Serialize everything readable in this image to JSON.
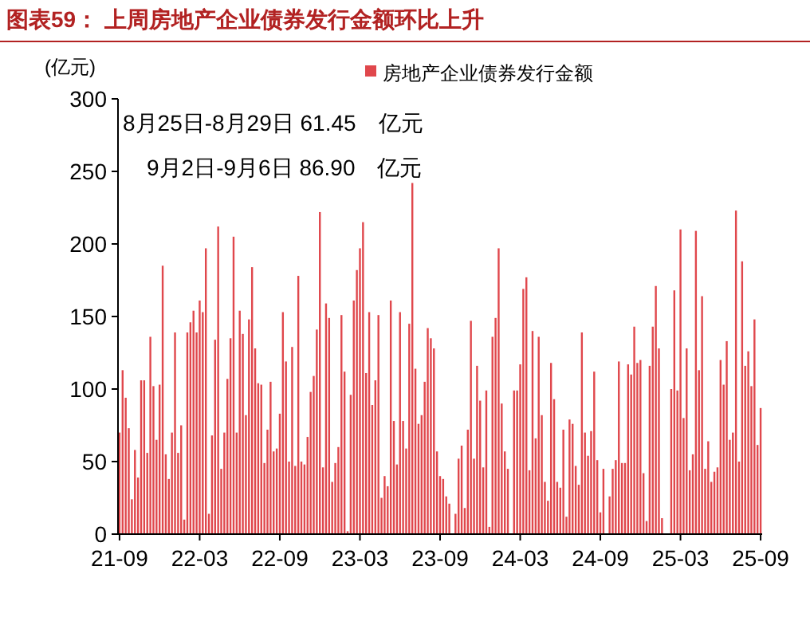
{
  "chart_data": {
    "type": "bar",
    "title": "图表59：  上周房地产企业债券发行金额环比上升",
    "ylabel": "(亿元)",
    "annotations": [
      "8月25日-8月29日 61.45　亿元",
      "9月2日-9月6日 86.90　亿元"
    ],
    "legend": "top",
    "ylim": [
      0,
      300
    ],
    "yticks": [
      0,
      50,
      100,
      150,
      200,
      250,
      300
    ],
    "categories": [
      "21-09",
      null,
      null,
      null,
      null,
      null,
      null,
      null,
      null,
      null,
      null,
      null,
      null,
      null,
      null,
      null,
      null,
      null,
      null,
      null,
      null,
      null,
      null,
      null,
      null,
      null,
      "22-03",
      null,
      null,
      null,
      null,
      null,
      null,
      null,
      null,
      null,
      null,
      null,
      null,
      null,
      null,
      null,
      null,
      null,
      null,
      null,
      null,
      null,
      null,
      null,
      null,
      null,
      "22-09",
      null,
      null,
      null,
      null,
      null,
      null,
      null,
      null,
      null,
      null,
      null,
      null,
      null,
      null,
      null,
      null,
      null,
      null,
      null,
      null,
      null,
      null,
      null,
      null,
      null,
      "23-03",
      null,
      null,
      null,
      null,
      null,
      null,
      null,
      null,
      null,
      null,
      null,
      null,
      null,
      null,
      null,
      null,
      null,
      null,
      null,
      null,
      null,
      null,
      null,
      null,
      null,
      "23-09",
      null,
      null,
      null,
      null,
      null,
      null,
      null,
      null,
      null,
      null,
      null,
      null,
      null,
      null,
      null,
      null,
      null,
      null,
      null,
      null,
      null,
      null,
      null,
      null,
      null,
      "24-03",
      null,
      null,
      null,
      null,
      null,
      null,
      null,
      null,
      null,
      null,
      null,
      null,
      null,
      null,
      null,
      null,
      null,
      null,
      null,
      null,
      null,
      null,
      null,
      null,
      null,
      "24-09",
      null,
      null,
      null,
      null,
      null,
      null,
      null,
      null,
      null,
      null,
      null,
      null,
      null,
      null,
      null,
      null,
      null,
      null,
      null,
      null,
      null,
      null,
      null,
      null,
      null,
      "25-03",
      null,
      null,
      null,
      null,
      null,
      null,
      null,
      null,
      null,
      null,
      null,
      null,
      null,
      null,
      null,
      null,
      null,
      null,
      null,
      null,
      null,
      null,
      null,
      null,
      null,
      "25-09"
    ],
    "series": [
      {
        "name": "房地产企业债券发行金额",
        "color": "#e0474c",
        "values": [
          70,
          113,
          94,
          73,
          24,
          58,
          39,
          106,
          106,
          56,
          136,
          102,
          65,
          103,
          185,
          55,
          38,
          70,
          139,
          56,
          75,
          10,
          139,
          146,
          154,
          139,
          161,
          153,
          197,
          14,
          68,
          134,
          212,
          45,
          70,
          107,
          135,
          205,
          70,
          154,
          138,
          82,
          148,
          184,
          128,
          104,
          103,
          49,
          72,
          105,
          57,
          59,
          83,
          153,
          119,
          50,
          129,
          47,
          178,
          50,
          48,
          67,
          98,
          109,
          141,
          222,
          46,
          159,
          149,
          36,
          49,
          60,
          151,
          112,
          2,
          96,
          161,
          182,
          197,
          215,
          111,
          153,
          89,
          106,
          151,
          25,
          40,
          33,
          161,
          78,
          48,
          153,
          78,
          59,
          145,
          242,
          114,
          76,
          82,
          105,
          142,
          135,
          128,
          57,
          40,
          38,
          26,
          21,
          0,
          14,
          52,
          61,
          18,
          72,
          147,
          52,
          116,
          92,
          46,
          99,
          5,
          136,
          149,
          197,
          90,
          57,
          45,
          0,
          99,
          99,
          117,
          169,
          177,
          44,
          140,
          66,
          136,
          82,
          36,
          23,
          118,
          93,
          36,
          32,
          72,
          12,
          79,
          76,
          47,
          34,
          139,
          70,
          54,
          71,
          112,
          51,
          15,
          45,
          0,
          26,
          45,
          51,
          119,
          49,
          49,
          117,
          110,
          143,
          118,
          120,
          42,
          9,
          116,
          143,
          171,
          128,
          11,
          0,
          0,
          100,
          168,
          99,
          210,
          80,
          128,
          44,
          55,
          209,
          113,
          164,
          45,
          64,
          36,
          43,
          46,
          120,
          103,
          133,
          65,
          70,
          223,
          50,
          188,
          116,
          126,
          102,
          148,
          61.45,
          86.9
        ]
      }
    ]
  }
}
